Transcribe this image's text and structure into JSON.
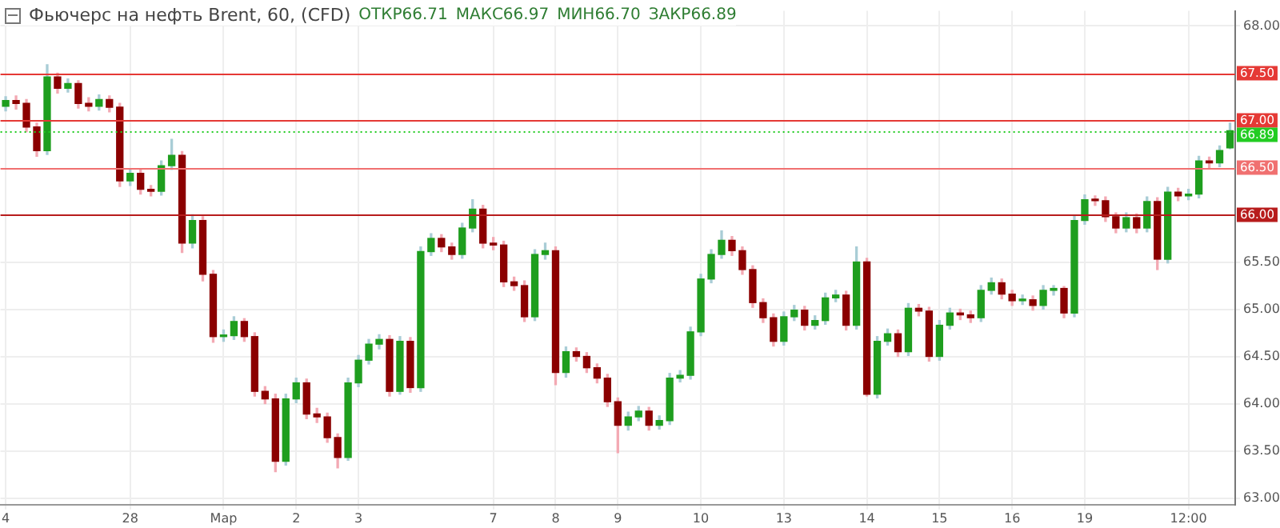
{
  "chart_data": {
    "type": "candlestick",
    "title": "Фьючерс на нефть Brent, 60, (CFD)",
    "annotations": [
      "ОТКР66.71",
      "МАКС66.97",
      "МИН66.70",
      "ЗАКР66.89"
    ],
    "categories": [
      "4",
      null,
      null,
      null,
      null,
      null,
      null,
      null,
      null,
      null,
      null,
      null,
      "28",
      null,
      null,
      null,
      null,
      null,
      null,
      null,
      null,
      "Мар",
      null,
      null,
      null,
      null,
      null,
      null,
      "2",
      null,
      null,
      null,
      null,
      null,
      "3",
      null,
      null,
      null,
      null,
      null,
      null,
      null,
      null,
      null,
      null,
      null,
      null,
      "7",
      null,
      null,
      null,
      null,
      null,
      "8",
      null,
      null,
      null,
      null,
      null,
      "9",
      null,
      null,
      null,
      null,
      null,
      null,
      null,
      "10",
      null,
      null,
      null,
      null,
      null,
      null,
      null,
      "13",
      null,
      null,
      null,
      null,
      null,
      null,
      null,
      "14",
      null,
      null,
      null,
      null,
      null,
      null,
      "15",
      null,
      null,
      null,
      null,
      null,
      null,
      "16",
      null,
      null,
      null,
      null,
      null,
      null,
      "19",
      null,
      null,
      null,
      null,
      null,
      null,
      null,
      null,
      null,
      "12:00",
      null,
      null,
      null,
      null
    ],
    "ohlc": [
      [
        67.15,
        67.25,
        67.1,
        67.21
      ],
      [
        67.21,
        67.26,
        67.12,
        67.18
      ],
      [
        67.18,
        67.22,
        66.88,
        66.93
      ],
      [
        66.93,
        66.97,
        66.62,
        66.68
      ],
      [
        66.68,
        67.59,
        66.64,
        67.46
      ],
      [
        67.46,
        67.5,
        67.29,
        67.34
      ],
      [
        67.34,
        67.44,
        67.3,
        67.39
      ],
      [
        67.39,
        67.42,
        67.13,
        67.18
      ],
      [
        67.18,
        67.24,
        67.1,
        67.15
      ],
      [
        67.15,
        67.27,
        67.11,
        67.22
      ],
      [
        67.22,
        67.26,
        67.09,
        67.14
      ],
      [
        67.14,
        67.18,
        66.3,
        66.36
      ],
      [
        66.36,
        66.49,
        66.31,
        66.44
      ],
      [
        66.44,
        66.48,
        66.22,
        66.27
      ],
      [
        66.27,
        66.31,
        66.2,
        66.25
      ],
      [
        66.25,
        66.57,
        66.21,
        66.52
      ],
      [
        66.52,
        66.8,
        66.48,
        66.63
      ],
      [
        66.63,
        66.67,
        65.6,
        65.7
      ],
      [
        65.7,
        66.0,
        65.65,
        65.94
      ],
      [
        65.94,
        65.98,
        65.3,
        65.37
      ],
      [
        65.37,
        65.41,
        64.65,
        64.71
      ],
      [
        64.71,
        64.78,
        64.66,
        64.72
      ],
      [
        64.72,
        64.92,
        64.68,
        64.87
      ],
      [
        64.87,
        64.9,
        64.66,
        64.71
      ],
      [
        64.71,
        64.75,
        64.08,
        64.13
      ],
      [
        64.13,
        64.18,
        64.0,
        64.05
      ],
      [
        64.05,
        64.1,
        63.28,
        63.39
      ],
      [
        63.39,
        64.1,
        63.35,
        64.05
      ],
      [
        64.05,
        64.27,
        64.01,
        64.22
      ],
      [
        64.22,
        64.26,
        63.84,
        63.89
      ],
      [
        63.89,
        63.95,
        63.8,
        63.86
      ],
      [
        63.86,
        63.9,
        63.59,
        63.64
      ],
      [
        63.64,
        63.68,
        63.32,
        63.43
      ],
      [
        63.43,
        64.27,
        63.4,
        64.22
      ],
      [
        64.22,
        64.51,
        64.18,
        64.46
      ],
      [
        64.46,
        64.68,
        64.42,
        64.63
      ],
      [
        64.63,
        64.73,
        64.58,
        64.68
      ],
      [
        64.68,
        64.72,
        64.08,
        64.13
      ],
      [
        64.13,
        64.71,
        64.1,
        64.66
      ],
      [
        64.66,
        64.7,
        64.12,
        64.17
      ],
      [
        64.17,
        65.66,
        64.13,
        65.61
      ],
      [
        65.61,
        65.8,
        65.57,
        65.75
      ],
      [
        65.75,
        65.79,
        65.61,
        65.66
      ],
      [
        65.66,
        65.7,
        65.53,
        65.58
      ],
      [
        65.58,
        65.91,
        65.54,
        65.86
      ],
      [
        65.86,
        66.16,
        65.82,
        66.06
      ],
      [
        66.06,
        66.1,
        65.65,
        65.7
      ],
      [
        65.7,
        65.76,
        65.63,
        65.68
      ],
      [
        65.68,
        65.72,
        65.24,
        65.29
      ],
      [
        65.29,
        65.34,
        65.2,
        65.25
      ],
      [
        65.25,
        65.3,
        64.87,
        64.92
      ],
      [
        64.92,
        65.63,
        64.88,
        65.58
      ],
      [
        65.58,
        65.7,
        65.53,
        65.62
      ],
      [
        65.62,
        65.66,
        64.2,
        64.33
      ],
      [
        64.33,
        64.6,
        64.28,
        64.55
      ],
      [
        64.55,
        64.59,
        64.45,
        64.5
      ],
      [
        64.5,
        64.54,
        64.33,
        64.38
      ],
      [
        64.38,
        64.42,
        64.22,
        64.27
      ],
      [
        64.27,
        64.31,
        63.97,
        64.02
      ],
      [
        64.02,
        64.06,
        63.48,
        63.77
      ],
      [
        63.77,
        63.91,
        63.72,
        63.86
      ],
      [
        63.86,
        63.97,
        63.82,
        63.92
      ],
      [
        63.92,
        63.96,
        63.72,
        63.77
      ],
      [
        63.77,
        63.87,
        63.73,
        63.82
      ],
      [
        63.82,
        64.32,
        63.78,
        64.27
      ],
      [
        64.27,
        64.35,
        64.23,
        64.3
      ],
      [
        64.3,
        64.81,
        64.26,
        64.76
      ],
      [
        64.76,
        65.37,
        64.72,
        65.32
      ],
      [
        65.32,
        65.63,
        65.28,
        65.58
      ],
      [
        65.58,
        65.83,
        65.54,
        65.73
      ],
      [
        65.73,
        65.77,
        65.57,
        65.62
      ],
      [
        65.62,
        65.66,
        65.37,
        65.42
      ],
      [
        65.42,
        65.46,
        65.02,
        65.07
      ],
      [
        65.07,
        65.11,
        64.86,
        64.91
      ],
      [
        64.91,
        64.95,
        64.61,
        64.66
      ],
      [
        64.66,
        64.97,
        64.62,
        64.92
      ],
      [
        64.92,
        65.04,
        64.88,
        64.99
      ],
      [
        64.99,
        65.03,
        64.78,
        64.83
      ],
      [
        64.83,
        64.93,
        64.79,
        64.88
      ],
      [
        64.88,
        65.17,
        64.84,
        65.12
      ],
      [
        65.12,
        65.2,
        65.08,
        65.15
      ],
      [
        65.15,
        65.19,
        64.78,
        64.83
      ],
      [
        64.83,
        65.66,
        64.79,
        65.5
      ],
      [
        65.5,
        65.54,
        64.08,
        64.1
      ],
      [
        64.1,
        64.71,
        64.06,
        64.66
      ],
      [
        64.66,
        64.79,
        64.62,
        64.74
      ],
      [
        64.74,
        64.78,
        64.5,
        64.55
      ],
      [
        64.55,
        65.06,
        64.51,
        65.01
      ],
      [
        65.01,
        65.05,
        64.93,
        64.98
      ],
      [
        64.98,
        65.02,
        64.45,
        64.5
      ],
      [
        64.5,
        64.88,
        64.46,
        64.83
      ],
      [
        64.83,
        65.01,
        64.79,
        64.96
      ],
      [
        64.96,
        65.0,
        64.89,
        64.94
      ],
      [
        64.94,
        64.98,
        64.86,
        64.91
      ],
      [
        64.91,
        65.25,
        64.87,
        65.2
      ],
      [
        65.2,
        65.33,
        65.16,
        65.28
      ],
      [
        65.28,
        65.32,
        65.11,
        65.16
      ],
      [
        65.16,
        65.2,
        65.04,
        65.09
      ],
      [
        65.09,
        65.15,
        65.05,
        65.1
      ],
      [
        65.1,
        65.14,
        64.99,
        65.04
      ],
      [
        65.04,
        65.25,
        65.0,
        65.2
      ],
      [
        65.2,
        65.25,
        65.15,
        65.22
      ],
      [
        65.22,
        65.24,
        64.91,
        64.96
      ],
      [
        64.96,
        65.99,
        64.92,
        65.94
      ],
      [
        65.94,
        66.21,
        65.9,
        66.16
      ],
      [
        66.16,
        66.2,
        66.1,
        66.15
      ],
      [
        66.15,
        66.19,
        65.93,
        65.98
      ],
      [
        65.98,
        66.02,
        65.81,
        65.86
      ],
      [
        65.86,
        66.02,
        65.82,
        65.97
      ],
      [
        65.97,
        66.01,
        65.81,
        65.86
      ],
      [
        65.86,
        66.19,
        65.82,
        66.14
      ],
      [
        66.14,
        66.18,
        65.42,
        65.53
      ],
      [
        65.53,
        66.29,
        65.49,
        66.24
      ],
      [
        66.24,
        66.28,
        66.15,
        66.2
      ],
      [
        66.2,
        66.27,
        66.16,
        66.22
      ],
      [
        66.22,
        66.62,
        66.18,
        66.57
      ],
      [
        66.57,
        66.61,
        66.5,
        66.55
      ],
      [
        66.55,
        66.73,
        66.51,
        66.68
      ],
      [
        66.71,
        66.97,
        66.7,
        66.89
      ]
    ],
    "ylim": [
      62.93,
      68.16
    ],
    "yticks": [
      {
        "value": 63,
        "label": "63.00"
      },
      {
        "value": 63.5,
        "label": "63.50"
      },
      {
        "value": 64,
        "label": "64.00"
      },
      {
        "value": 64.5,
        "label": "64.50"
      },
      {
        "value": 65,
        "label": "65.00"
      },
      {
        "value": 65.5,
        "label": "65.50"
      },
      {
        "value": 68,
        "label": "68.00"
      }
    ],
    "ref_lines": [
      {
        "axis": "y",
        "value": 67.5,
        "label": "67.50",
        "color": "#e53935"
      },
      {
        "axis": "y",
        "value": 67,
        "label": "67.00",
        "color": "#e53935"
      },
      {
        "axis": "y",
        "value": 66.5,
        "label": "66.50",
        "color": "#f07070"
      },
      {
        "axis": "y",
        "value": 66,
        "label": "66.00",
        "color": "#b71c1c"
      },
      {
        "axis": "y",
        "value": 66.89,
        "label": "66.89",
        "color": "#22cc22",
        "line_style": "dotted"
      }
    ],
    "grid": true,
    "legend": false
  }
}
